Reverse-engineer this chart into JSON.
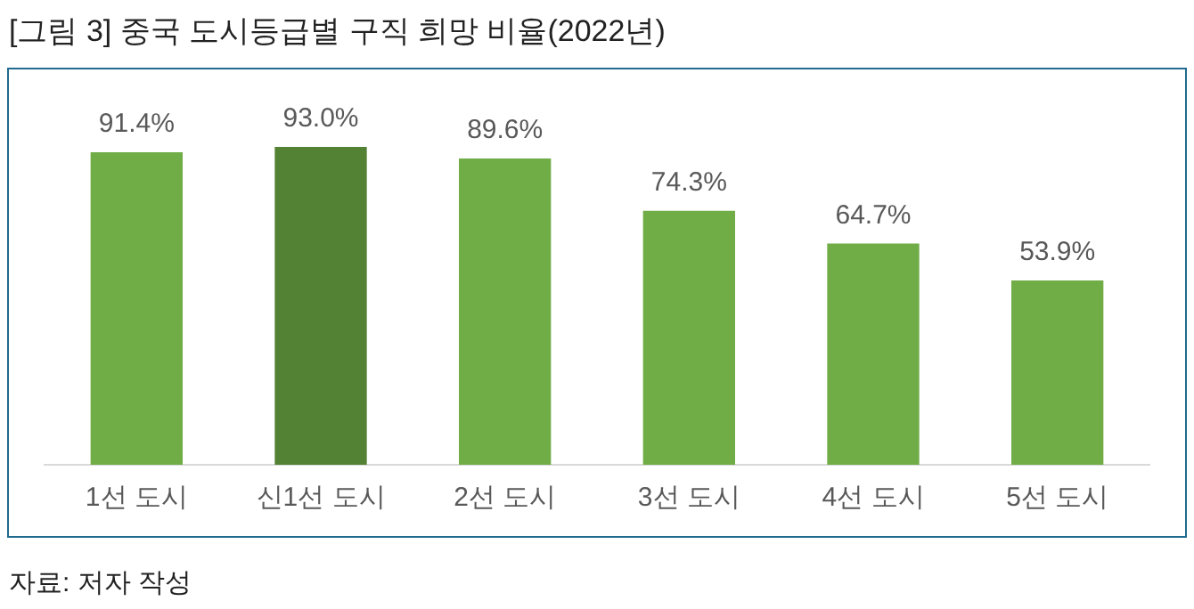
{
  "chart_data": {
    "type": "bar",
    "title": "[그림 3] 중국 도시등급별 구직 희망 비율(2022년)",
    "categories": [
      "1선 도시",
      "신1선 도시",
      "2선 도시",
      "3선 도시",
      "4선 도시",
      "5선 도시"
    ],
    "values": [
      91.4,
      93.0,
      89.6,
      74.3,
      64.7,
      53.9
    ],
    "value_labels": [
      "91.4%",
      "93.0%",
      "89.6%",
      "74.3%",
      "64.7%",
      "53.9%"
    ],
    "colors": [
      "#70ad47",
      "#548235",
      "#70ad47",
      "#70ad47",
      "#70ad47",
      "#70ad47"
    ],
    "grid": false,
    "legend": false,
    "annotations": [
      "자료: 저자 작성"
    ]
  }
}
